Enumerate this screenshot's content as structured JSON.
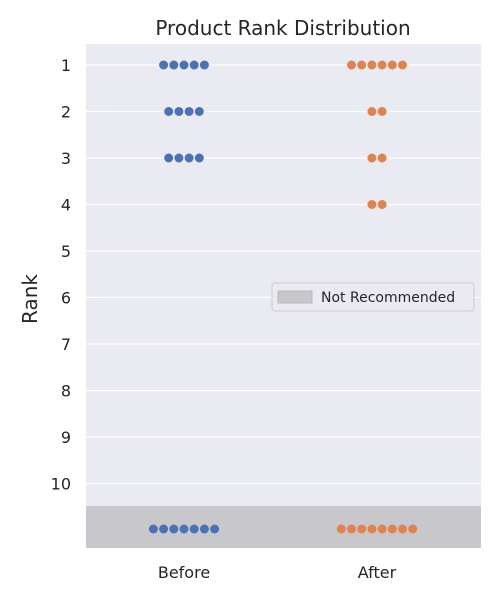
{
  "chart_data": {
    "type": "swarm",
    "title": "Product Rank Distribution",
    "ylabel": "Rank",
    "xlabel": "",
    "categories": [
      "Before",
      "After"
    ],
    "yticks": [
      "1",
      "2",
      "3",
      "4",
      "5",
      "6",
      "7",
      "8",
      "9",
      "10"
    ],
    "ylim": [
      1,
      10
    ],
    "grid": true,
    "legend": {
      "position": "right",
      "entries": [
        "Not Recommended"
      ]
    },
    "series": [
      {
        "category": "Before",
        "color": "#4c72b0",
        "counts": [
          {
            "rank": "1",
            "count": 5
          },
          {
            "rank": "2",
            "count": 4
          },
          {
            "rank": "3",
            "count": 4
          },
          {
            "rank": "Not Recommended",
            "count": 7
          }
        ]
      },
      {
        "category": "After",
        "color": "#dd8452",
        "counts": [
          {
            "rank": "1",
            "count": 6
          },
          {
            "rank": "2",
            "count": 2
          },
          {
            "rank": "3",
            "count": 2
          },
          {
            "rank": "4",
            "count": 2
          },
          {
            "rank": "Not Recommended",
            "count": 8
          }
        ]
      }
    ],
    "colors": {
      "plot_bg": "#eaeaf2",
      "not_recommended_band": "#c8c8cc",
      "grid": "#ffffff"
    }
  }
}
